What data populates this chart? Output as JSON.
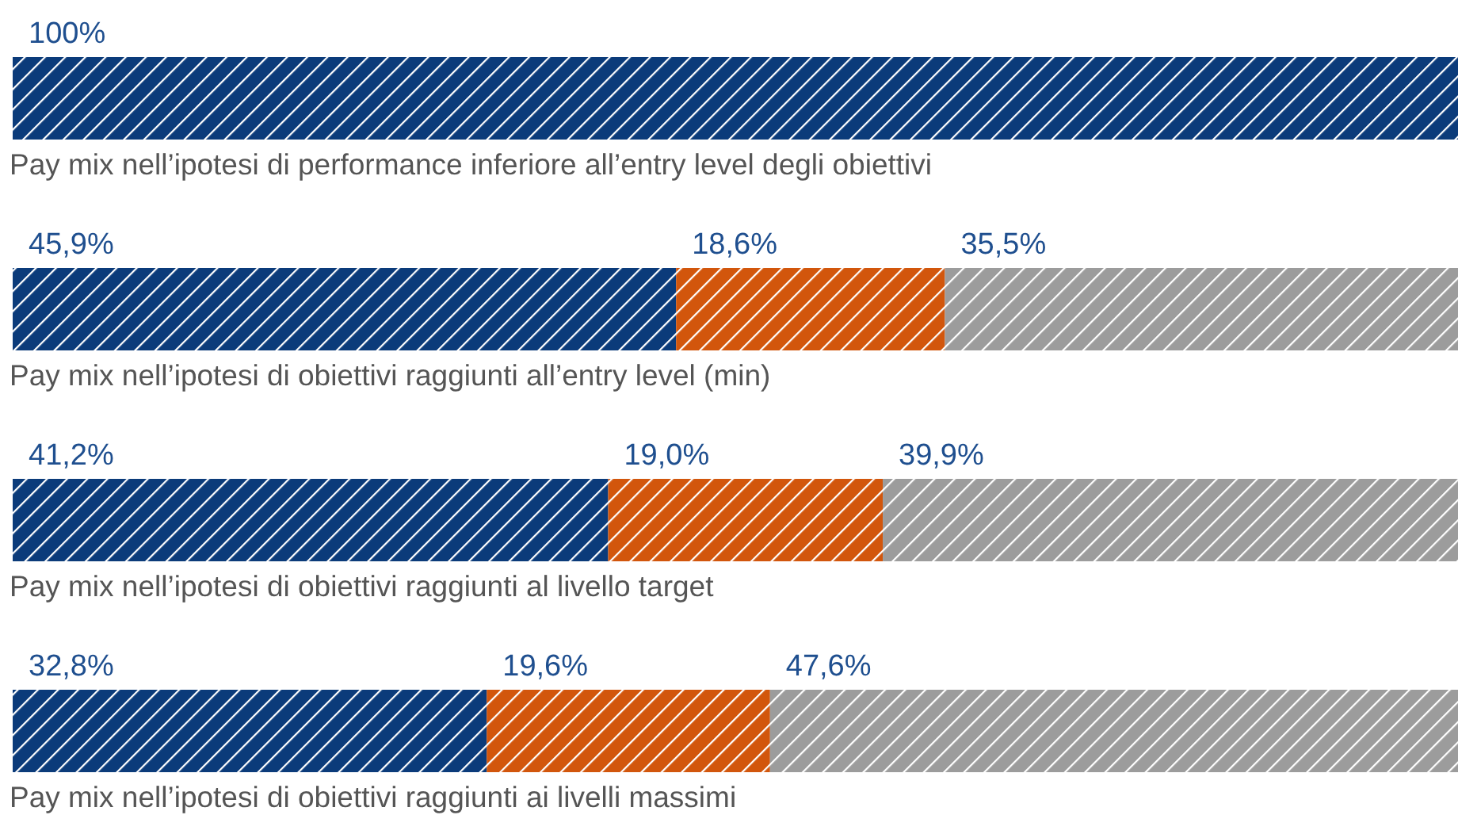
{
  "chart_data": {
    "type": "bar",
    "orientation": "horizontal",
    "stacked": true,
    "xlim": [
      0,
      100
    ],
    "categories": [
      "Pay mix nell’ipotesi di performance inferiore all’entry level degli obiettivi",
      "Pay mix nell’ipotesi di obiettivi raggiunti all’entry level (min)",
      "Pay mix nell’ipotesi di obiettivi raggiunti al livello target",
      "Pay mix nell’ipotesi di obiettivi raggiunti ai livelli massimi"
    ],
    "series": [
      {
        "color": "#0b3b7a",
        "values": [
          100,
          45.9,
          41.2,
          32.8
        ],
        "value_labels": [
          "100%",
          "45,9%",
          "41,2%",
          "32,8%"
        ]
      },
      {
        "color": "#d2560c",
        "values": [
          null,
          18.6,
          19.0,
          19.6
        ],
        "value_labels": [
          null,
          "18,6%",
          "19,0%",
          "19,6%"
        ]
      },
      {
        "color": "#9c9c9c",
        "values": [
          null,
          35.5,
          39.9,
          47.6
        ],
        "value_labels": [
          null,
          "35,5%",
          "39,9%",
          "47,6%"
        ]
      }
    ]
  }
}
